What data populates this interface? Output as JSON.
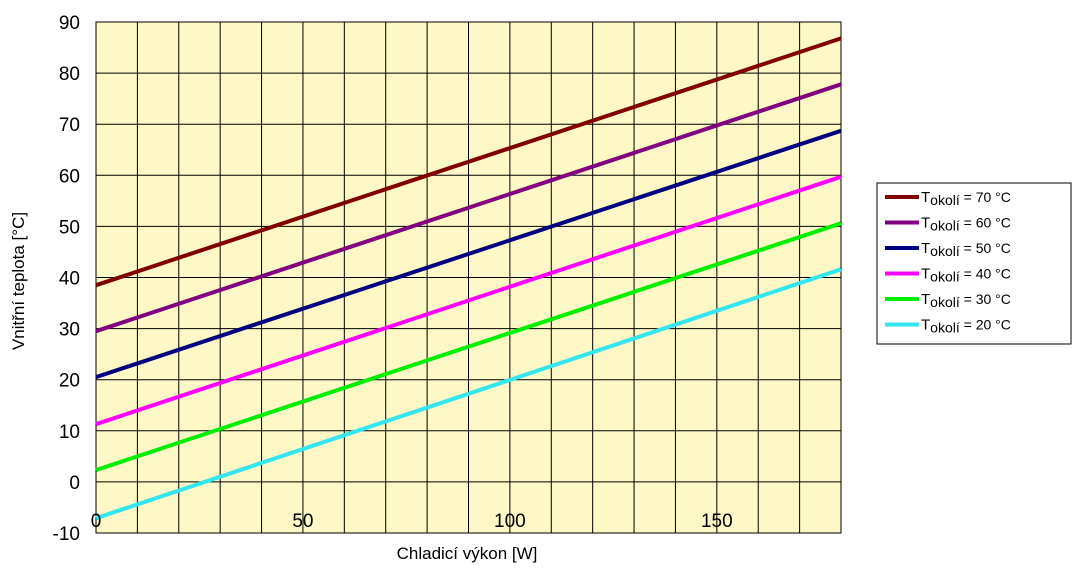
{
  "chart_data": {
    "type": "line",
    "title": "",
    "xlabel": "Chladicí výkon [W]",
    "ylabel": "Vnitřní teplota [°C]",
    "xlim": [
      0,
      180
    ],
    "ylim": [
      -10,
      90
    ],
    "x_ticks": [
      0,
      50,
      100,
      150
    ],
    "y_ticks": [
      -10,
      0,
      10,
      20,
      30,
      40,
      50,
      60,
      70,
      80,
      90
    ],
    "x_grid_step": 10,
    "grid": true,
    "plot_background": "#fdf8c6",
    "legend_position": "right",
    "legend_label_prefix": "T",
    "legend_label_subscript": "okolí",
    "series": [
      {
        "name": "Tokolí = 70 °C",
        "value_label": " = 70 °C",
        "color": "#800000",
        "x": [
          0,
          180
        ],
        "y": [
          38.5,
          86.8
        ]
      },
      {
        "name": "Tokolí = 60 °C",
        "value_label": " = 60 °C",
        "color": "#800080",
        "x": [
          0,
          180
        ],
        "y": [
          29.5,
          77.8
        ]
      },
      {
        "name": "Tokolí = 50 °C",
        "value_label": " = 50 °C",
        "color": "#000080",
        "x": [
          0,
          180
        ],
        "y": [
          20.5,
          68.7
        ]
      },
      {
        "name": "Tokolí = 40 °C",
        "value_label": " = 40 °C",
        "color": "#ff00ff",
        "x": [
          0,
          180
        ],
        "y": [
          11.3,
          59.7
        ]
      },
      {
        "name": "Tokolí = 30 °C",
        "value_label": " = 30 °C",
        "color": "#00ee00",
        "x": [
          0,
          180
        ],
        "y": [
          2.3,
          50.6
        ]
      },
      {
        "name": "Tokolí = 20 °C",
        "value_label": " = 20 °C",
        "color": "#33e6f0",
        "x": [
          0,
          180
        ],
        "y": [
          -7.1,
          41.6
        ]
      }
    ]
  }
}
